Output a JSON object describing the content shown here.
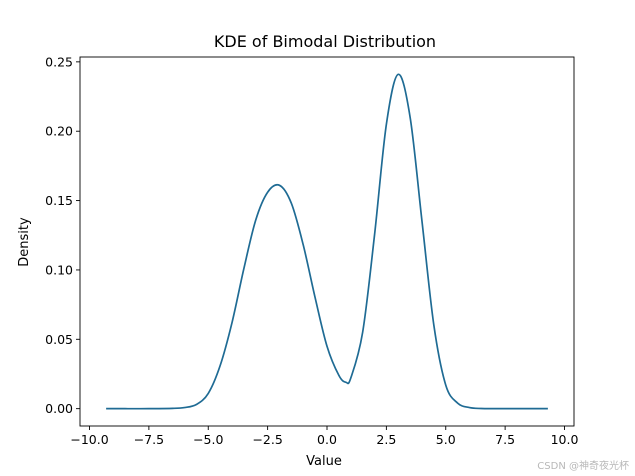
{
  "chart_data": {
    "type": "line",
    "title": "KDE of Bimodal Distribution",
    "xlabel": "Value",
    "ylabel": "Density",
    "xlim": [
      -10.4,
      10.4
    ],
    "ylim": [
      -0.0125,
      0.2535
    ],
    "xticks": [
      -10.0,
      -7.5,
      -5.0,
      -2.5,
      0.0,
      2.5,
      5.0,
      7.5,
      10.0
    ],
    "xtick_labels": [
      "−10.0",
      "−7.5",
      "−5.0",
      "−2.5",
      "0.0",
      "2.5",
      "5.0",
      "7.5",
      "10.0"
    ],
    "yticks": [
      0.0,
      0.05,
      0.1,
      0.15,
      0.2,
      0.25
    ],
    "ytick_labels": [
      "0.00",
      "0.05",
      "0.10",
      "0.15",
      "0.20",
      "0.25"
    ],
    "grid": false,
    "line_color": "#1f6b94",
    "series": [
      {
        "x": [
          -9.3,
          -8.5,
          -7.5,
          -6.5,
          -6.0,
          -5.5,
          -5.0,
          -4.5,
          -4.0,
          -3.5,
          -3.0,
          -2.5,
          -2.0,
          -1.5,
          -1.0,
          -0.5,
          0.0,
          0.5,
          0.8,
          1.0,
          1.5,
          2.0,
          2.5,
          3.0,
          3.5,
          4.0,
          4.5,
          5.0,
          5.5,
          6.0,
          6.5,
          7.0,
          8.0,
          9.3
        ],
        "y": [
          0.0,
          0.0,
          0.0,
          0.0002,
          0.0008,
          0.003,
          0.011,
          0.031,
          0.062,
          0.101,
          0.136,
          0.156,
          0.161,
          0.148,
          0.118,
          0.08,
          0.045,
          0.024,
          0.019,
          0.022,
          0.055,
          0.125,
          0.205,
          0.241,
          0.21,
          0.135,
          0.06,
          0.017,
          0.004,
          0.0008,
          0.0001,
          0.0,
          0.0,
          0.0
        ]
      }
    ]
  },
  "watermark": "CSDN @神奇夜光杯"
}
